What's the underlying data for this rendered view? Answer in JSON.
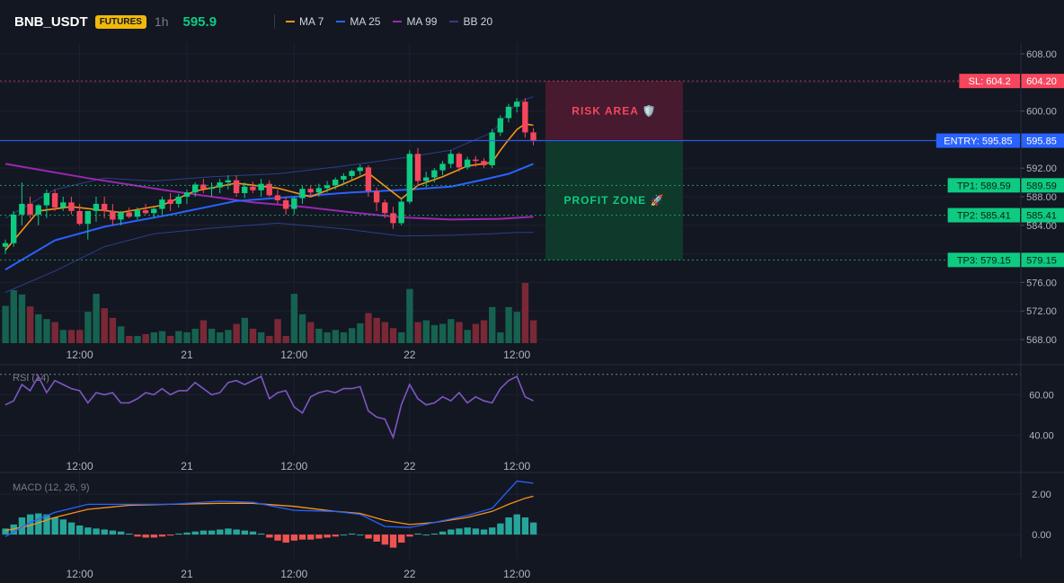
{
  "header": {
    "symbol": "BNB_USDT",
    "badge": "FUTURES",
    "timeframe": "1h",
    "last_price": "595.9",
    "legend": [
      {
        "name": "MA 7",
        "color": "#f7931a"
      },
      {
        "name": "MA 25",
        "color": "#2962ff"
      },
      {
        "name": "MA 99",
        "color": "#9c27b0"
      },
      {
        "name": "BB 20",
        "color": "#2b3f88"
      }
    ]
  },
  "colors": {
    "up": "#0ecb81",
    "down": "#f6465d",
    "up_vol": "#16614f",
    "down_vol": "#7a2836",
    "rsi": "#7e57c2",
    "macd": "#2962ff",
    "signal": "#f7931a",
    "hist_up": "#26a69a",
    "hist_down": "#ef5350"
  },
  "chart_data": [
    {
      "type": "candlestick",
      "x_tick_labels": [
        "12:00",
        "21",
        "12:00",
        "22",
        "12:00"
      ],
      "y_ticks": [
        608,
        604,
        600,
        596,
        592,
        588,
        584,
        580,
        576,
        572,
        568
      ],
      "y_tick_labels": [
        "608.00",
        "",
        "600.00",
        "",
        "592.00",
        "588.00",
        "584.00",
        "",
        "576.00",
        "572.00",
        "568.00"
      ],
      "ylim": [
        567.5,
        609.5
      ],
      "candles": [
        [
          581,
          582,
          580,
          581.5
        ],
        [
          581.5,
          586,
          581,
          585.5
        ],
        [
          585.5,
          590,
          584,
          587
        ],
        [
          587,
          588,
          585,
          585.5
        ],
        [
          585.5,
          587,
          584,
          586.8
        ],
        [
          586.8,
          589,
          585,
          588.5
        ],
        [
          588.5,
          589,
          586,
          586.5
        ],
        [
          586.5,
          588,
          586,
          587.2
        ],
        [
          587.2,
          588,
          585.5,
          586
        ],
        [
          586,
          587,
          584,
          584.2
        ],
        [
          584.2,
          586,
          582,
          586
        ],
        [
          586,
          588,
          584.5,
          587
        ],
        [
          587,
          588,
          585,
          586
        ],
        [
          586,
          587,
          584,
          584.8
        ],
        [
          584.8,
          586,
          584,
          585.8
        ],
        [
          585.8,
          586.5,
          585,
          585.2
        ],
        [
          585.2,
          586.5,
          584.8,
          586.1
        ],
        [
          586.1,
          587,
          585.5,
          585.7
        ],
        [
          585.7,
          586.5,
          585,
          586.3
        ],
        [
          586.3,
          588,
          585.5,
          587.6
        ],
        [
          587.6,
          588.5,
          586,
          587
        ],
        [
          587,
          588.4,
          586.5,
          588
        ],
        [
          588,
          589,
          587,
          588.6
        ],
        [
          588.6,
          590,
          588,
          589.7
        ],
        [
          589.7,
          590.5,
          588.5,
          589.1
        ],
        [
          589.1,
          590,
          588,
          589.3
        ],
        [
          589.3,
          590.5,
          588.5,
          590
        ],
        [
          590,
          591,
          589,
          590.3
        ],
        [
          590.3,
          591,
          588,
          588.5
        ],
        [
          588.5,
          590,
          587.8,
          589.4
        ],
        [
          589.4,
          590.1,
          588.5,
          588.9
        ],
        [
          588.9,
          590.5,
          588,
          589.8
        ],
        [
          589.8,
          590.3,
          588,
          588.2
        ],
        [
          588.2,
          589,
          587,
          587.5
        ],
        [
          587.5,
          588,
          585.5,
          586.3
        ],
        [
          586.3,
          588,
          585.5,
          587.8
        ],
        [
          587.8,
          589.5,
          587,
          589.1
        ],
        [
          589.1,
          589.5,
          588,
          588.6
        ],
        [
          588.6,
          589.8,
          588,
          589.2
        ],
        [
          589.2,
          590.2,
          588.6,
          589.6
        ],
        [
          589.6,
          590.7,
          589,
          590.4
        ],
        [
          590.4,
          591.3,
          589.8,
          590.9
        ],
        [
          590.9,
          591.8,
          590.3,
          591.6
        ],
        [
          591.6,
          592.5,
          591,
          592.1
        ],
        [
          592.1,
          592.4,
          588,
          588.8
        ],
        [
          588.8,
          589.3,
          586,
          587.2
        ],
        [
          587.2,
          587.6,
          585,
          585.7
        ],
        [
          585.7,
          586.6,
          583.5,
          584.3
        ],
        [
          584.3,
          587.8,
          584,
          587.3
        ],
        [
          587.3,
          594.5,
          587,
          594
        ],
        [
          594,
          594.8,
          589.5,
          590.2
        ],
        [
          590.2,
          591.5,
          589.3,
          590.7
        ],
        [
          590.7,
          592,
          590,
          591.7
        ],
        [
          591.7,
          593,
          591,
          592.6
        ],
        [
          592.6,
          594.5,
          592,
          594
        ],
        [
          594,
          594.2,
          591.5,
          592.1
        ],
        [
          592.1,
          593.6,
          591.8,
          593.2
        ],
        [
          593.2,
          593.7,
          592.2,
          593
        ],
        [
          593,
          593.4,
          592,
          592.4
        ],
        [
          592.4,
          597.5,
          592,
          597
        ],
        [
          597,
          599.4,
          596.5,
          599
        ],
        [
          599,
          601,
          598.4,
          600.6
        ],
        [
          600.6,
          601.8,
          599.8,
          601.3
        ],
        [
          601.3,
          601.8,
          596.3,
          597
        ],
        [
          597,
          597.6,
          595.2,
          595.8
        ]
      ],
      "volume_pct": [
        0.62,
        0.88,
        0.81,
        0.61,
        0.48,
        0.4,
        0.35,
        0.22,
        0.22,
        0.22,
        0.52,
        0.82,
        0.58,
        0.42,
        0.28,
        0.12,
        0.12,
        0.15,
        0.18,
        0.2,
        0.12,
        0.2,
        0.18,
        0.24,
        0.38,
        0.24,
        0.18,
        0.22,
        0.32,
        0.42,
        0.24,
        0.18,
        0.12,
        0.4,
        0.12,
        0.82,
        0.48,
        0.35,
        0.24,
        0.18,
        0.22,
        0.18,
        0.25,
        0.33,
        0.5,
        0.42,
        0.35,
        0.25,
        0.18,
        0.9,
        0.35,
        0.38,
        0.3,
        0.32,
        0.4,
        0.35,
        0.22,
        0.32,
        0.38,
        0.6,
        0.18,
        0.6,
        0.52,
        1.0,
        0.38
      ],
      "lines": {
        "ma7": [
          [
            0,
            580.5
          ],
          [
            4,
            586
          ],
          [
            8,
            586.6
          ],
          [
            14,
            585.8
          ],
          [
            19,
            586.8
          ],
          [
            23,
            588.8
          ],
          [
            28,
            589.9
          ],
          [
            33,
            589.2
          ],
          [
            37,
            588
          ],
          [
            41,
            589.8
          ],
          [
            44,
            591.3
          ],
          [
            48,
            587.7
          ],
          [
            50,
            589.6
          ],
          [
            53,
            590.8
          ],
          [
            56,
            592.3
          ],
          [
            59,
            592.8
          ],
          [
            60,
            594.5
          ],
          [
            61,
            596
          ],
          [
            62,
            597.4
          ],
          [
            63,
            598.2
          ],
          [
            64,
            598
          ]
        ],
        "ma25": [
          [
            0,
            577.8
          ],
          [
            6,
            581.9
          ],
          [
            12,
            583.8
          ],
          [
            20,
            585.5
          ],
          [
            28,
            587.4
          ],
          [
            35,
            588
          ],
          [
            42,
            588.6
          ],
          [
            49,
            589
          ],
          [
            54,
            589.4
          ],
          [
            58,
            590.4
          ],
          [
            61,
            591.2
          ],
          [
            64,
            592.6
          ]
        ],
        "ma99": [
          [
            0,
            592.6
          ],
          [
            10,
            590.6
          ],
          [
            20,
            588.8
          ],
          [
            30,
            587.2
          ],
          [
            36,
            586.6
          ],
          [
            42,
            585.8
          ],
          [
            48,
            585.1
          ],
          [
            54,
            584.8
          ],
          [
            60,
            584.9
          ],
          [
            64,
            585.2
          ]
        ],
        "bb_up": [
          [
            0,
            585
          ],
          [
            6,
            589
          ],
          [
            12,
            590.6
          ],
          [
            18,
            590.2
          ],
          [
            25,
            590.8
          ],
          [
            33,
            591.2
          ],
          [
            41,
            592.3
          ],
          [
            48,
            593.4
          ],
          [
            54,
            594.5
          ],
          [
            59,
            597
          ],
          [
            62,
            601.2
          ],
          [
            64,
            602
          ]
        ],
        "bb_lo": [
          [
            0,
            574.6
          ],
          [
            6,
            577.6
          ],
          [
            12,
            581
          ],
          [
            18,
            582.8
          ],
          [
            25,
            583.6
          ],
          [
            33,
            584.3
          ],
          [
            41,
            583.5
          ],
          [
            48,
            582.5
          ],
          [
            54,
            582.6
          ],
          [
            59,
            582.8
          ],
          [
            62,
            583
          ],
          [
            64,
            583
          ]
        ]
      },
      "levels": [
        {
          "label": "SL: 604.2",
          "value": 604.2,
          "axis": "604.20",
          "color": "#f6465d",
          "label_text": "#ffffff"
        },
        {
          "label": "ENTRY: 595.85",
          "value": 595.85,
          "axis": "595.85",
          "color": "#2962ff",
          "label_text": "#ffffff"
        },
        {
          "label": "TP1: 589.59",
          "value": 589.59,
          "axis": "589.59",
          "color": "#0ecb81",
          "label_text": "#0b1f15"
        },
        {
          "label": "TP2: 585.41",
          "value": 585.41,
          "axis": "585.41",
          "color": "#0ecb81",
          "label_text": "#0b1f15"
        },
        {
          "label": "TP3: 579.15",
          "value": 579.15,
          "axis": "579.15",
          "color": "#0ecb81",
          "label_text": "#0b1f15"
        }
      ],
      "risk_label": "RISK AREA 🛡️",
      "profit_label": "PROFIT ZONE 🚀"
    },
    {
      "type": "line",
      "title": "RSI (14)",
      "y_ticks": [
        60,
        40
      ],
      "y_tick_labels": [
        "60.00",
        "40.00"
      ],
      "ylim": [
        31,
        73
      ],
      "values": [
        55,
        57,
        65,
        62,
        69,
        61,
        67,
        65,
        63,
        62,
        56,
        61,
        60,
        61,
        56,
        56,
        58,
        61,
        60,
        63,
        60,
        62,
        62,
        66,
        63,
        60,
        61,
        66,
        67,
        65,
        67,
        69,
        58,
        61,
        62,
        54,
        51,
        59,
        61,
        62,
        61,
        63,
        63,
        64,
        52,
        49,
        48,
        39,
        55,
        65,
        58,
        55,
        56,
        59,
        57,
        61,
        56,
        59,
        57,
        56,
        63,
        67,
        69,
        59,
        57
      ],
      "overbought": 70
    },
    {
      "type": "line",
      "title": "MACD (12, 26, 9)",
      "y_ticks": [
        2,
        0
      ],
      "y_tick_labels": [
        "2.00",
        "0.00"
      ],
      "ylim": [
        -1.2,
        2.9
      ],
      "macd": [
        [
          0,
          -0.1
        ],
        [
          3,
          0.6
        ],
        [
          6,
          1.1
        ],
        [
          10,
          1.5
        ],
        [
          15,
          1.5
        ],
        [
          20,
          1.5
        ],
        [
          26,
          1.65
        ],
        [
          30,
          1.6
        ],
        [
          35,
          1.2
        ],
        [
          40,
          1.15
        ],
        [
          43,
          1.0
        ],
        [
          46,
          0.4
        ],
        [
          49,
          0.35
        ],
        [
          52,
          0.6
        ],
        [
          56,
          0.95
        ],
        [
          59,
          1.3
        ],
        [
          61,
          2.2
        ],
        [
          62,
          2.65
        ],
        [
          64,
          2.55
        ]
      ],
      "signal": [
        [
          0,
          0.2
        ],
        [
          3,
          0.45
        ],
        [
          6,
          0.85
        ],
        [
          10,
          1.25
        ],
        [
          15,
          1.45
        ],
        [
          20,
          1.5
        ],
        [
          26,
          1.55
        ],
        [
          30,
          1.55
        ],
        [
          35,
          1.4
        ],
        [
          40,
          1.15
        ],
        [
          43,
          1.05
        ],
        [
          46,
          0.7
        ],
        [
          49,
          0.5
        ],
        [
          52,
          0.6
        ],
        [
          56,
          0.85
        ],
        [
          59,
          1.15
        ],
        [
          61,
          1.5
        ],
        [
          63,
          1.8
        ],
        [
          64,
          1.9
        ]
      ],
      "hist": [
        0.3,
        0.5,
        0.85,
        1.0,
        1.05,
        1.0,
        0.85,
        0.75,
        0.6,
        0.45,
        0.35,
        0.3,
        0.25,
        0.2,
        0.15,
        0.05,
        -0.1,
        -0.15,
        -0.15,
        -0.1,
        -0.05,
        0.05,
        0.1,
        0.15,
        0.2,
        0.2,
        0.25,
        0.3,
        0.25,
        0.2,
        0.15,
        0.05,
        -0.15,
        -0.3,
        -0.4,
        -0.3,
        -0.25,
        -0.25,
        -0.2,
        -0.15,
        -0.1,
        0.0,
        0.05,
        0.0,
        -0.2,
        -0.35,
        -0.5,
        -0.65,
        -0.4,
        -0.1,
        0.05,
        0.0,
        0.05,
        0.15,
        0.25,
        0.3,
        0.35,
        0.3,
        0.25,
        0.35,
        0.55,
        0.85,
        1.0,
        0.85,
        0.6
      ]
    }
  ]
}
